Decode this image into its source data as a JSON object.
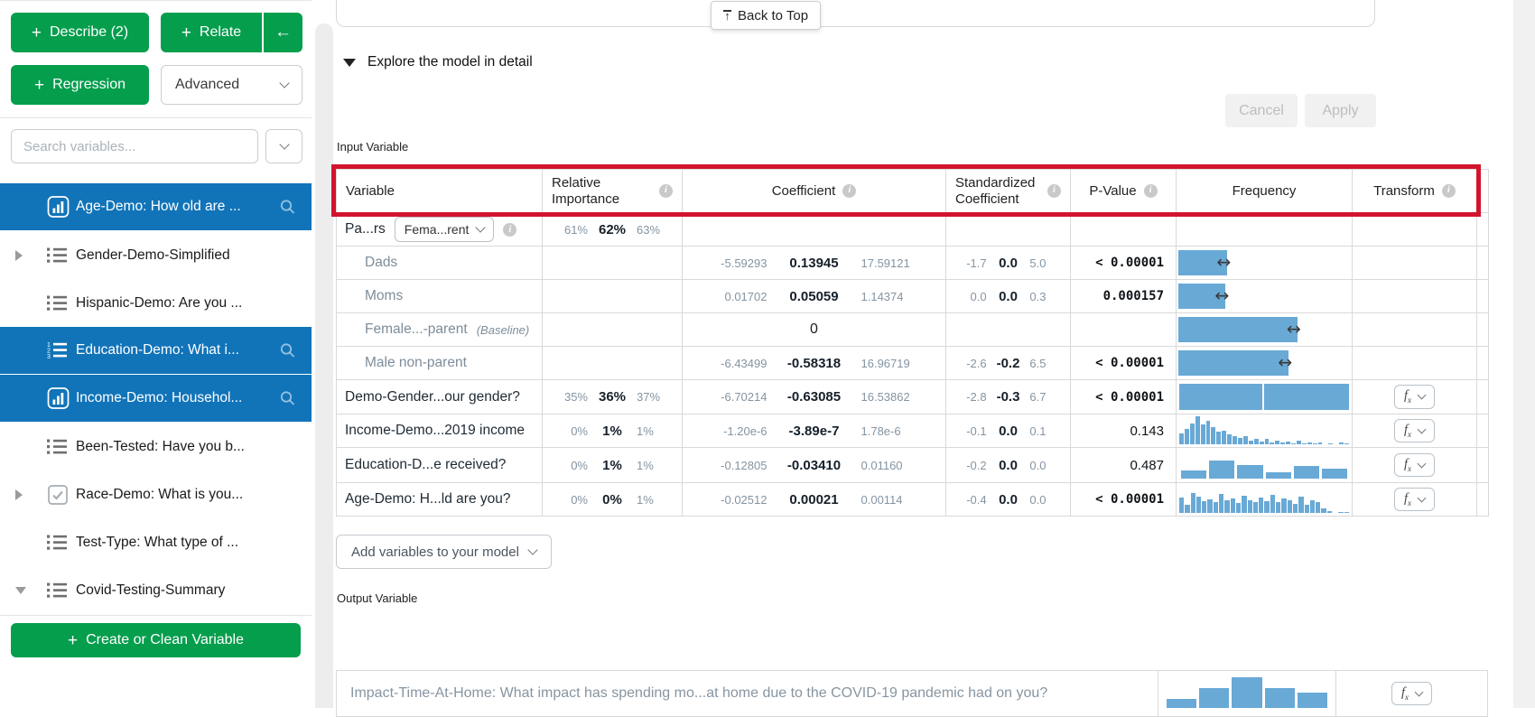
{
  "sidebar": {
    "buttons": {
      "plus": "+",
      "describe": "Describe (2)",
      "relate": "Relate",
      "back": "←",
      "regression": "Regression",
      "advanced": "Advanced",
      "create": "Create or Clean Variable"
    },
    "search": {
      "placeholder": "Search variables..."
    },
    "items": [
      {
        "label": "Age-Demo: How old are ...",
        "icon": "histogram",
        "selected": true,
        "caret": "none"
      },
      {
        "label": "Gender-Demo-Simplified",
        "icon": "list",
        "selected": false,
        "caret": "right"
      },
      {
        "label": "Hispanic-Demo: Are you ...",
        "icon": "list",
        "selected": false,
        "caret": "none"
      },
      {
        "label": "Education-Demo: What i...",
        "icon": "ordered-list",
        "selected": true,
        "caret": "none"
      },
      {
        "label": "Income-Demo: Househol...",
        "icon": "histogram",
        "selected": true,
        "caret": "none"
      },
      {
        "label": "Been-Tested: Have you b...",
        "icon": "list",
        "selected": false,
        "caret": "none"
      },
      {
        "label": "Race-Demo: What is you...",
        "icon": "checkbox",
        "selected": false,
        "caret": "right"
      },
      {
        "label": "Test-Type: What type of ...",
        "icon": "list",
        "selected": false,
        "caret": "none"
      },
      {
        "label": "Covid-Testing-Summary",
        "icon": "list",
        "selected": false,
        "caret": "down"
      }
    ]
  },
  "main": {
    "back_to_top": "Back to Top",
    "section_title": "Explore the model in detail",
    "cancel": "Cancel",
    "apply": "Apply",
    "input_variable_label": "Input Variable",
    "output_variable_label": "Output Variable",
    "add_variables": "Add variables to your model",
    "fx_label": "fx",
    "table": {
      "headers": [
        {
          "label": "Variable",
          "info": false
        },
        {
          "label": "Relative Importance",
          "info": true
        },
        {
          "label": "Coefficient",
          "info": true
        },
        {
          "label": "Standardized Coefficient",
          "info": true
        },
        {
          "label": "P-Value",
          "info": true
        },
        {
          "label": "Frequency",
          "info": false
        },
        {
          "label": "Transform",
          "info": true
        }
      ],
      "rows": [
        {
          "type": "selector",
          "label": "Pa...rs",
          "dropdown": "Fema...rent",
          "importance": {
            "lo": "61%",
            "mid": "62%",
            "hi": "63%"
          }
        },
        {
          "type": "category",
          "label": "Dads",
          "coefficient": {
            "lo": "-5.59293",
            "mid": "0.13945",
            "hi": "17.59121"
          },
          "standardized": {
            "lo": "-1.7",
            "mid": "0.0",
            "hi": "5.0"
          },
          "p_value": "< 0.00001",
          "significant": true,
          "frequency": {
            "kind": "bar",
            "pct": 28
          }
        },
        {
          "type": "category",
          "label": "Moms",
          "coefficient": {
            "lo": "0.01702",
            "mid": "0.05059",
            "hi": "1.14374"
          },
          "standardized": {
            "lo": "0.0",
            "mid": "0.0",
            "hi": "0.3"
          },
          "p_value": "0.000157",
          "significant": true,
          "frequency": {
            "kind": "bar",
            "pct": 27
          }
        },
        {
          "type": "category",
          "label": "Female...-parent",
          "baseline": "(Baseline)",
          "coefficient_single": "0",
          "frequency": {
            "kind": "bar",
            "pct": 68
          }
        },
        {
          "type": "category",
          "label": "Male non-parent",
          "coefficient": {
            "lo": "-6.43499",
            "mid": "-0.58318",
            "hi": "16.96719"
          },
          "standardized": {
            "lo": "-2.6",
            "mid": "-0.2",
            "hi": "6.5"
          },
          "p_value": "< 0.00001",
          "significant": true,
          "frequency": {
            "kind": "bar",
            "pct": 63
          }
        },
        {
          "type": "variable",
          "label": "Demo-Gender...our gender?",
          "importance": {
            "lo": "35%",
            "mid": "36%",
            "hi": "37%"
          },
          "coefficient": {
            "lo": "-6.70214",
            "mid": "-0.63085",
            "hi": "16.53862"
          },
          "standardized": {
            "lo": "-2.8",
            "mid": "-0.3",
            "hi": "6.7"
          },
          "p_value": "< 0.00001",
          "significant": true,
          "frequency": {
            "kind": "split",
            "widths": [
              49,
              50
            ]
          },
          "fx": true
        },
        {
          "type": "variable",
          "label": "Income-Demo...2019 income",
          "importance": {
            "lo": "0%",
            "mid": "1%",
            "hi": "1%"
          },
          "coefficient": {
            "lo": "-1.20e-6",
            "mid": "-3.89e-7",
            "hi": "1.78e-6"
          },
          "standardized": {
            "lo": "-0.1",
            "mid": "0.0",
            "hi": "0.1"
          },
          "p_value": "0.143",
          "significant": false,
          "frequency": {
            "kind": "hist",
            "dense": true,
            "values": [
              40,
              55,
              75,
              100,
              70,
              85,
              60,
              45,
              50,
              35,
              28,
              22,
              30,
              12,
              18,
              10,
              20,
              8,
              14,
              5,
              10,
              4,
              12,
              3,
              6,
              2,
              8,
              0,
              4,
              0,
              5,
              3
            ]
          },
          "fx": true
        },
        {
          "type": "variable",
          "label": "Education-D...e received?",
          "importance": {
            "lo": "0%",
            "mid": "1%",
            "hi": "1%"
          },
          "coefficient": {
            "lo": "-0.12805",
            "mid": "-0.03410",
            "hi": "0.01160"
          },
          "standardized": {
            "lo": "-0.2",
            "mid": "0.0",
            "hi": "0.0"
          },
          "p_value": "0.487",
          "significant": false,
          "frequency": {
            "kind": "hist",
            "dense": false,
            "values": [
              30,
              64,
              48,
              22,
              46,
              34
            ]
          },
          "fx": true
        },
        {
          "type": "variable",
          "label": "Age-Demo: H...ld are you?",
          "importance": {
            "lo": "0%",
            "mid": "0%",
            "hi": "1%"
          },
          "coefficient": {
            "lo": "-0.02512",
            "mid": "0.00021",
            "hi": "0.00114"
          },
          "standardized": {
            "lo": "-0.4",
            "mid": "0.0",
            "hi": "0.0"
          },
          "p_value": "< 0.00001",
          "significant": true,
          "frequency": {
            "kind": "hist",
            "dense": true,
            "values": [
              55,
              30,
              70,
              58,
              42,
              48,
              38,
              68,
              44,
              52,
              34,
              62,
              46,
              38,
              56,
              42,
              64,
              38,
              52,
              46,
              32,
              58,
              28,
              44,
              38,
              16,
              6,
              0,
              4,
              3
            ]
          },
          "fx": true
        }
      ]
    },
    "output_row": {
      "label": "Impact-Time-At-Home: What impact has spending mo...at home due to the COVID-19 pandemic had on you?",
      "histogram": [
        30,
        65,
        100,
        65,
        50
      ]
    }
  },
  "colors": {
    "green": "#049e4d",
    "selected_blue": "#1174b9",
    "bar_blue": "#69a9d6",
    "highlight_red": "#d2142e"
  }
}
